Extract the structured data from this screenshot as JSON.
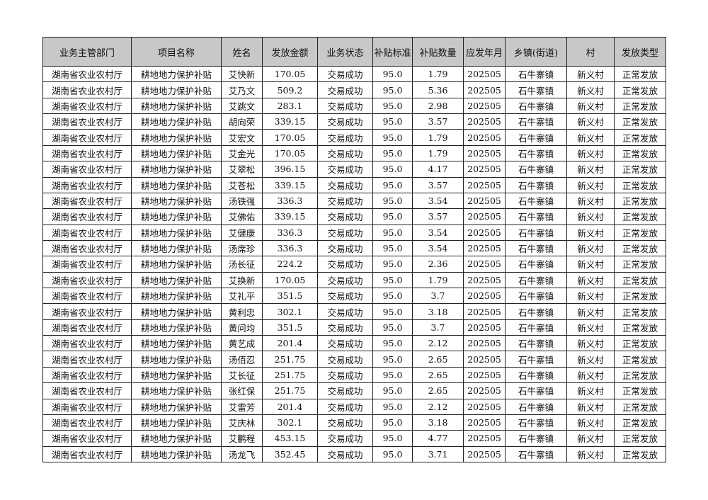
{
  "headers": [
    "业务主管部门",
    "项目名称",
    "姓名",
    "发放金额",
    "业务状态",
    "补贴标准",
    "补贴数量",
    "应发年月",
    "乡镇(街道)",
    "村",
    "发放类型"
  ],
  "colors": {
    "header_bg": "#c8c8c8",
    "border": "#222222"
  },
  "rows": [
    [
      "湖南省农业农村厅",
      "耕地地力保护补贴",
      "艾快新",
      "170.05",
      "交易成功",
      "95.0",
      "1.79",
      "202505",
      "石牛寨镇",
      "新义村",
      "正常发放"
    ],
    [
      "湖南省农业农村厅",
      "耕地地力保护补贴",
      "艾乃文",
      "509.2",
      "交易成功",
      "95.0",
      "5.36",
      "202505",
      "石牛寨镇",
      "新义村",
      "正常发放"
    ],
    [
      "湖南省农业农村厅",
      "耕地地力保护补贴",
      "艾跳文",
      "283.1",
      "交易成功",
      "95.0",
      "2.98",
      "202505",
      "石牛寨镇",
      "新义村",
      "正常发放"
    ],
    [
      "湖南省农业农村厅",
      "耕地地力保护补贴",
      "胡向荣",
      "339.15",
      "交易成功",
      "95.0",
      "3.57",
      "202505",
      "石牛寨镇",
      "新义村",
      "正常发放"
    ],
    [
      "湖南省农业农村厅",
      "耕地地力保护补贴",
      "艾宏文",
      "170.05",
      "交易成功",
      "95.0",
      "1.79",
      "202505",
      "石牛寨镇",
      "新义村",
      "正常发放"
    ],
    [
      "湖南省农业农村厅",
      "耕地地力保护补贴",
      "艾金光",
      "170.05",
      "交易成功",
      "95.0",
      "1.79",
      "202505",
      "石牛寨镇",
      "新义村",
      "正常发放"
    ],
    [
      "湖南省农业农村厅",
      "耕地地力保护补贴",
      "艾翠松",
      "396.15",
      "交易成功",
      "95.0",
      "4.17",
      "202505",
      "石牛寨镇",
      "新义村",
      "正常发放"
    ],
    [
      "湖南省农业农村厅",
      "耕地地力保护补贴",
      "艾苍松",
      "339.15",
      "交易成功",
      "95.0",
      "3.57",
      "202505",
      "石牛寨镇",
      "新义村",
      "正常发放"
    ],
    [
      "湖南省农业农村厅",
      "耕地地力保护补贴",
      "汤铁强",
      "336.3",
      "交易成功",
      "95.0",
      "3.54",
      "202505",
      "石牛寨镇",
      "新义村",
      "正常发放"
    ],
    [
      "湖南省农业农村厅",
      "耕地地力保护补贴",
      "艾佛佑",
      "339.15",
      "交易成功",
      "95.0",
      "3.57",
      "202505",
      "石牛寨镇",
      "新义村",
      "正常发放"
    ],
    [
      "湖南省农业农村厅",
      "耕地地力保护补贴",
      "艾健康",
      "336.3",
      "交易成功",
      "95.0",
      "3.54",
      "202505",
      "石牛寨镇",
      "新义村",
      "正常发放"
    ],
    [
      "湖南省农业农村厅",
      "耕地地力保护补贴",
      "汤席珍",
      "336.3",
      "交易成功",
      "95.0",
      "3.54",
      "202505",
      "石牛寨镇",
      "新义村",
      "正常发放"
    ],
    [
      "湖南省农业农村厅",
      "耕地地力保护补贴",
      "汤长征",
      "224.2",
      "交易成功",
      "95.0",
      "2.36",
      "202505",
      "石牛寨镇",
      "新义村",
      "正常发放"
    ],
    [
      "湖南省农业农村厅",
      "耕地地力保护补贴",
      "艾换新",
      "170.05",
      "交易成功",
      "95.0",
      "1.79",
      "202505",
      "石牛寨镇",
      "新义村",
      "正常发放"
    ],
    [
      "湖南省农业农村厅",
      "耕地地力保护补贴",
      "艾礼平",
      "351.5",
      "交易成功",
      "95.0",
      "3.7",
      "202505",
      "石牛寨镇",
      "新义村",
      "正常发放"
    ],
    [
      "湖南省农业农村厅",
      "耕地地力保护补贴",
      "黄利忠",
      "302.1",
      "交易成功",
      "95.0",
      "3.18",
      "202505",
      "石牛寨镇",
      "新义村",
      "正常发放"
    ],
    [
      "湖南省农业农村厅",
      "耕地地力保护补贴",
      "黄问均",
      "351.5",
      "交易成功",
      "95.0",
      "3.7",
      "202505",
      "石牛寨镇",
      "新义村",
      "正常发放"
    ],
    [
      "湖南省农业农村厅",
      "耕地地力保护补贴",
      "黄艺成",
      "201.4",
      "交易成功",
      "95.0",
      "2.12",
      "202505",
      "石牛寨镇",
      "新义村",
      "正常发放"
    ],
    [
      "湖南省农业农村厅",
      "耕地地力保护补贴",
      "汤佰忍",
      "251.75",
      "交易成功",
      "95.0",
      "2.65",
      "202505",
      "石牛寨镇",
      "新义村",
      "正常发放"
    ],
    [
      "湖南省农业农村厅",
      "耕地地力保护补贴",
      "艾长征",
      "251.75",
      "交易成功",
      "95.0",
      "2.65",
      "202505",
      "石牛寨镇",
      "新义村",
      "正常发放"
    ],
    [
      "湖南省农业农村厅",
      "耕地地力保护补贴",
      "张红保",
      "251.75",
      "交易成功",
      "95.0",
      "2.65",
      "202505",
      "石牛寨镇",
      "新义村",
      "正常发放"
    ],
    [
      "湖南省农业农村厅",
      "耕地地力保护补贴",
      "艾雷芳",
      "201.4",
      "交易成功",
      "95.0",
      "2.12",
      "202505",
      "石牛寨镇",
      "新义村",
      "正常发放"
    ],
    [
      "湖南省农业农村厅",
      "耕地地力保护补贴",
      "艾庆林",
      "302.1",
      "交易成功",
      "95.0",
      "3.18",
      "202505",
      "石牛寨镇",
      "新义村",
      "正常发放"
    ],
    [
      "湖南省农业农村厅",
      "耕地地力保护补贴",
      "艾鹏程",
      "453.15",
      "交易成功",
      "95.0",
      "4.77",
      "202505",
      "石牛寨镇",
      "新义村",
      "正常发放"
    ],
    [
      "湖南省农业农村厅",
      "耕地地力保护补贴",
      "汤龙飞",
      "352.45",
      "交易成功",
      "95.0",
      "3.71",
      "202505",
      "石牛寨镇",
      "新义村",
      "正常发放"
    ]
  ]
}
